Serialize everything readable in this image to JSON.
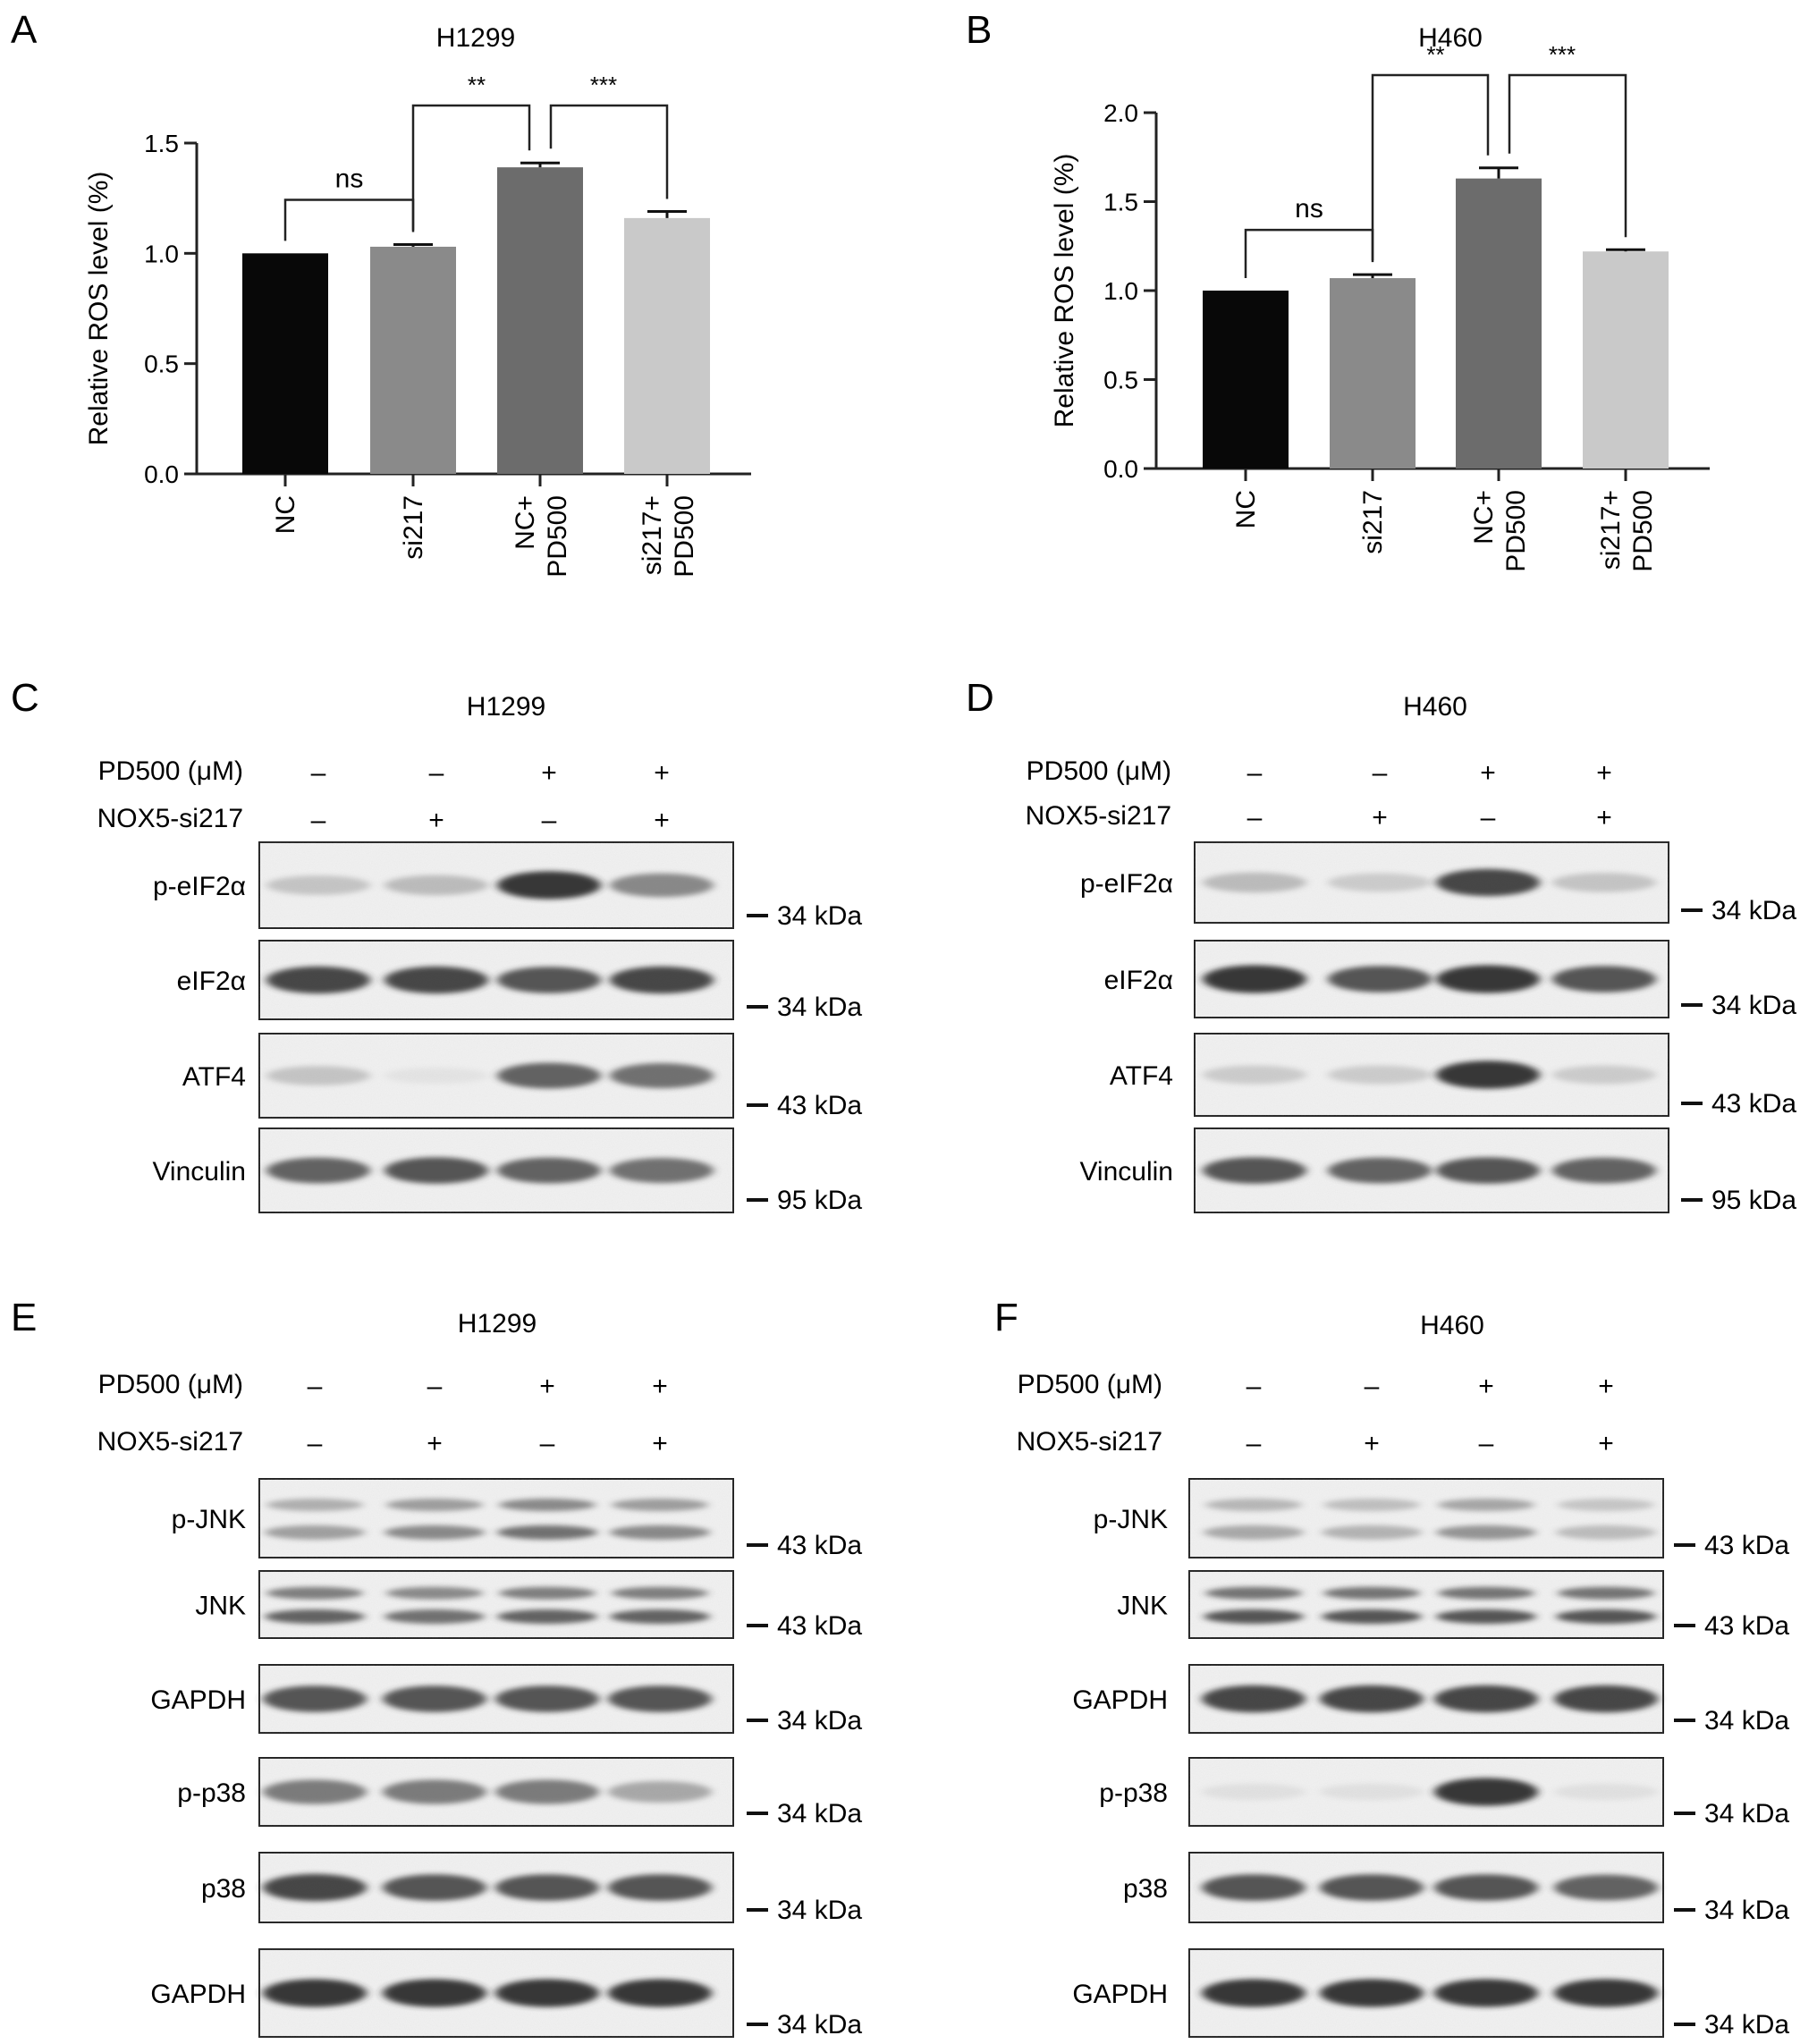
{
  "figure": {
    "panels": [
      {
        "letter": "A",
        "title": "H1299"
      },
      {
        "letter": "B",
        "title": "H460"
      },
      {
        "letter": "C",
        "title": "H1299"
      },
      {
        "letter": "D",
        "title": "H460"
      },
      {
        "letter": "E",
        "title": "H1299"
      },
      {
        "letter": "F",
        "title": "H460"
      }
    ]
  },
  "chart_data": [
    {
      "panel": "A",
      "type": "bar",
      "title": "H1299",
      "ylabel": "Relative ROS level (%)",
      "xlabel": "",
      "categories": [
        "NC",
        "si217",
        "NC+\nPD500",
        "si217+\nPD500"
      ],
      "values": [
        1.0,
        1.03,
        1.39,
        1.16
      ],
      "errors": [
        0.0,
        0.01,
        0.02,
        0.03
      ],
      "bar_colors": [
        "#080808",
        "#8a8a8a",
        "#6c6c6c",
        "#c9c9c9"
      ],
      "ylim": [
        0,
        1.5
      ],
      "yticks": [
        0.0,
        0.5,
        1.0,
        1.5
      ],
      "ytick_labels": [
        "0.0",
        "0.5",
        "1.0",
        "1.5"
      ],
      "grid": false,
      "significance": [
        {
          "from": 0,
          "to": 1,
          "label": "ns"
        },
        {
          "from": 1,
          "to": 2,
          "label": "**"
        },
        {
          "from": 2,
          "to": 3,
          "label": "***"
        }
      ]
    },
    {
      "panel": "B",
      "type": "bar",
      "title": "H460",
      "ylabel": "Relative ROS level (%)",
      "xlabel": "",
      "categories": [
        "NC",
        "si217",
        "NC+\nPD500",
        "si217+\nPD500"
      ],
      "values": [
        1.0,
        1.07,
        1.63,
        1.22
      ],
      "errors": [
        0.0,
        0.02,
        0.06,
        0.01
      ],
      "bar_colors": [
        "#080808",
        "#8a8a8a",
        "#6c6c6c",
        "#c9c9c9"
      ],
      "ylim": [
        0,
        2.0
      ],
      "yticks": [
        0.0,
        0.5,
        1.0,
        1.5,
        2.0
      ],
      "ytick_labels": [
        "0.0",
        "0.5",
        "1.0",
        "1.5",
        "2.0"
      ],
      "grid": false,
      "significance": [
        {
          "from": 0,
          "to": 1,
          "label": "ns"
        },
        {
          "from": 1,
          "to": 2,
          "label": "**"
        },
        {
          "from": 2,
          "to": 3,
          "label": "***"
        }
      ]
    }
  ],
  "blots": {
    "treatment_labels": {
      "pd500": "PD500 (μM)",
      "nox5": "NOX5-si217"
    },
    "pd500_signs": [
      "–",
      "–",
      "+",
      "+"
    ],
    "nox5_signs": [
      "–",
      "+",
      "–",
      "+"
    ],
    "panels": [
      {
        "panel": "C",
        "rows": [
          {
            "label": "p-eIF2α",
            "marker": "34 kDa",
            "bands": [
              0.35,
              0.4,
              0.95,
              0.65
            ],
            "lines": 1
          },
          {
            "label": "eIF2α",
            "marker": "34 kDa",
            "bands": [
              0.9,
              0.9,
              0.85,
              0.9
            ],
            "lines": 1
          },
          {
            "label": "ATF4",
            "marker": "43 kDa",
            "bands": [
              0.35,
              0.12,
              0.8,
              0.75
            ],
            "lines": 1
          },
          {
            "label": "Vinculin",
            "marker": "95 kDa",
            "bands": [
              0.8,
              0.85,
              0.8,
              0.75
            ],
            "lines": 1
          }
        ]
      },
      {
        "panel": "D",
        "rows": [
          {
            "label": "p-eIF2α",
            "marker": "34 kDa",
            "bands": [
              0.4,
              0.3,
              0.9,
              0.35
            ],
            "lines": 1
          },
          {
            "label": "eIF2α",
            "marker": "34 kDa",
            "bands": [
              0.95,
              0.85,
              0.95,
              0.85
            ],
            "lines": 1
          },
          {
            "label": "ATF4",
            "marker": "43 kDa",
            "bands": [
              0.3,
              0.3,
              0.95,
              0.3
            ],
            "lines": 1
          },
          {
            "label": "Vinculin",
            "marker": "95 kDa",
            "bands": [
              0.85,
              0.8,
              0.85,
              0.8
            ],
            "lines": 1
          }
        ]
      },
      {
        "panel": "E",
        "rows": [
          {
            "label": "p-JNK",
            "marker": "43 kDa",
            "bands": [
              0.55,
              0.65,
              0.75,
              0.65
            ],
            "lines": 2
          },
          {
            "label": "JNK",
            "marker": "43 kDa",
            "bands": [
              0.8,
              0.75,
              0.8,
              0.8
            ],
            "lines": 2
          },
          {
            "label": "GAPDH",
            "marker": "34 kDa",
            "bands": [
              0.85,
              0.85,
              0.85,
              0.85
            ],
            "lines": 1
          },
          {
            "label": "p-p38",
            "marker": "34 kDa",
            "bands": [
              0.7,
              0.7,
              0.7,
              0.5
            ],
            "lines": 1
          },
          {
            "label": "p38",
            "marker": "34 kDa",
            "bands": [
              0.9,
              0.85,
              0.85,
              0.85
            ],
            "lines": 1
          },
          {
            "label": "GAPDH",
            "marker": "34 kDa",
            "bands": [
              0.95,
              0.95,
              0.95,
              0.95
            ],
            "lines": 1
          }
        ]
      },
      {
        "panel": "F",
        "rows": [
          {
            "label": "p-JNK",
            "marker": "43 kDa",
            "bands": [
              0.5,
              0.45,
              0.6,
              0.4
            ],
            "lines": 2
          },
          {
            "label": "JNK",
            "marker": "43 kDa",
            "bands": [
              0.85,
              0.85,
              0.85,
              0.85
            ],
            "lines": 2
          },
          {
            "label": "GAPDH",
            "marker": "34 kDa",
            "bands": [
              0.9,
              0.9,
              0.9,
              0.9
            ],
            "lines": 1
          },
          {
            "label": "p-p38",
            "marker": "34 kDa",
            "bands": [
              0.15,
              0.15,
              0.95,
              0.15
            ],
            "lines": 1
          },
          {
            "label": "p38",
            "marker": "34 kDa",
            "bands": [
              0.85,
              0.85,
              0.85,
              0.8
            ],
            "lines": 1
          },
          {
            "label": "GAPDH",
            "marker": "34 kDa",
            "bands": [
              0.95,
              0.95,
              0.95,
              0.95
            ],
            "lines": 1
          }
        ]
      }
    ]
  }
}
